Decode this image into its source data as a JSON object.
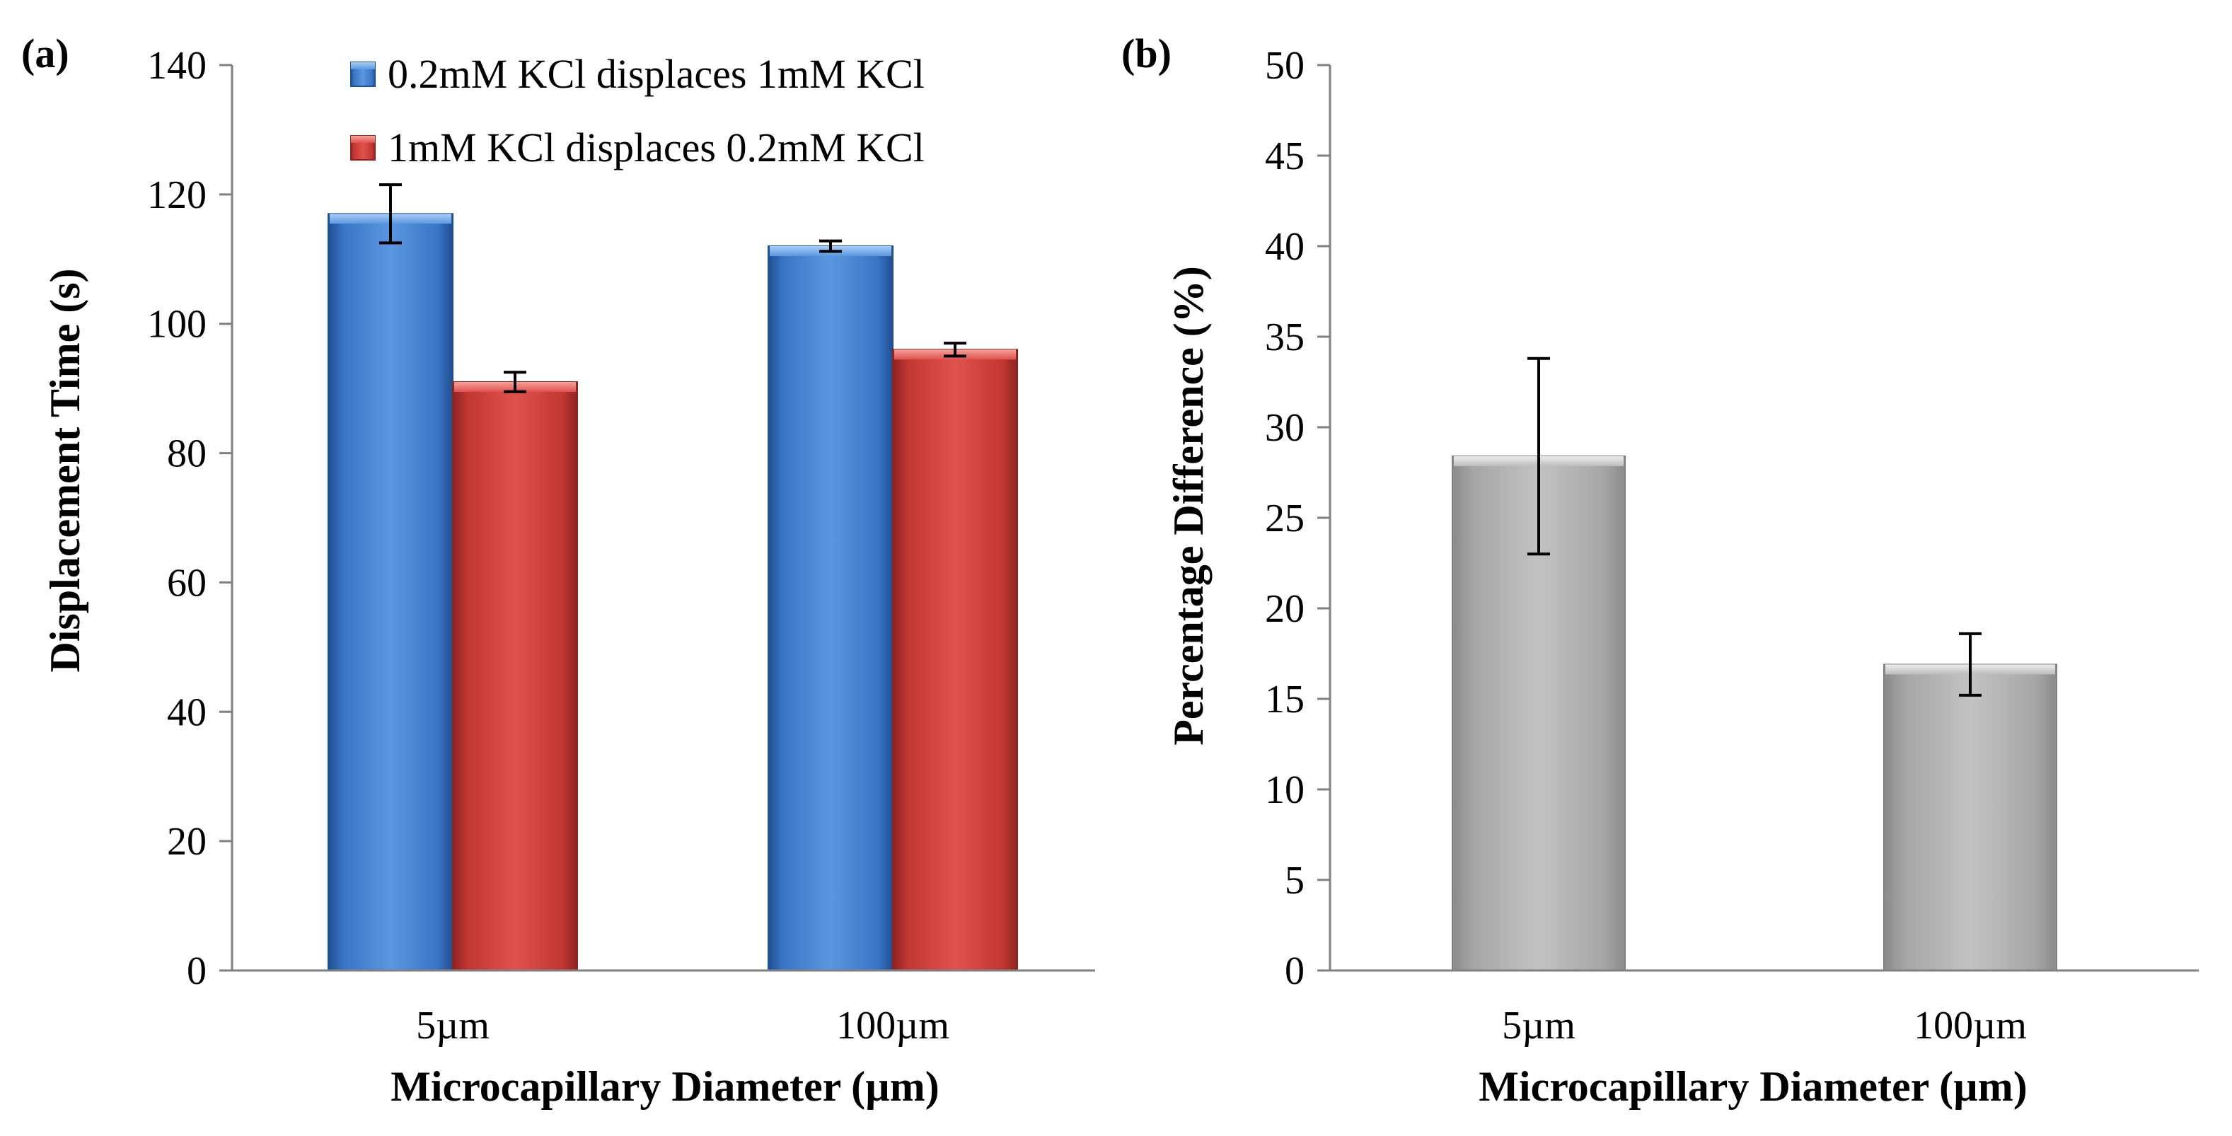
{
  "chart_data": [
    {
      "panel_label": "(a)",
      "type": "bar",
      "categories": [
        "5µm",
        "100µm"
      ],
      "series": [
        {
          "name": "0.2mM KCl displaces 1mM KCl",
          "values": [
            117,
            112
          ],
          "errors": [
            4.5,
            0.8
          ],
          "color": "#4a86d4"
        },
        {
          "name": "1mM KCl displaces 0.2mM KCl",
          "values": [
            91,
            96
          ],
          "errors": [
            1.5,
            1.0
          ],
          "color": "#d9423d"
        }
      ],
      "xlabel": "Microcapillary Diameter (µm)",
      "ylabel": "Displacement Time (s)",
      "ylim": [
        0,
        140
      ],
      "yticks": [
        "0",
        "20",
        "40",
        "60",
        "80",
        "100",
        "120",
        "140"
      ],
      "legend_position": "top"
    },
    {
      "panel_label": "(b)",
      "type": "bar",
      "categories": [
        "5µm",
        "100µm"
      ],
      "series": [
        {
          "name": "Percentage Difference",
          "values": [
            28.4,
            16.9
          ],
          "errors": [
            5.4,
            1.7
          ],
          "color": "#b0b0b0"
        }
      ],
      "xlabel": "Microcapillary Diameter (µm)",
      "ylabel": "Percentage Difference (%)",
      "ylim": [
        0,
        50
      ],
      "yticks": [
        "0",
        "5",
        "10",
        "15",
        "20",
        "25",
        "30",
        "35",
        "40",
        "45",
        "50"
      ]
    }
  ]
}
